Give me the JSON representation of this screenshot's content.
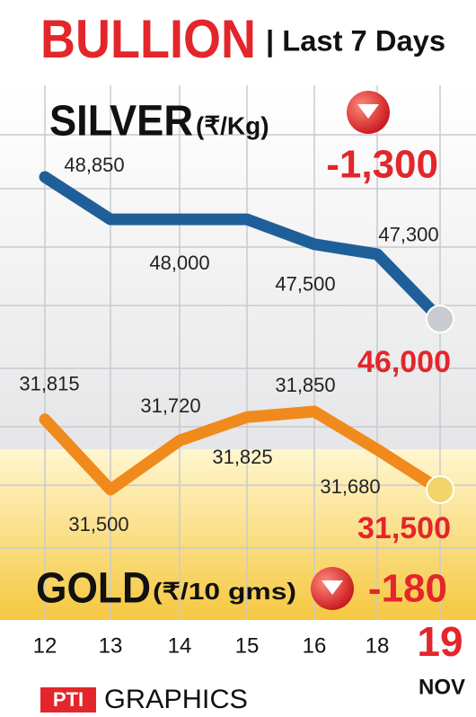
{
  "chart_data": {
    "type": "line",
    "title": "BULLION",
    "subtitle": "| Last 7 Days",
    "categories": [
      "12",
      "13",
      "14",
      "15",
      "16",
      "18",
      "19"
    ],
    "month": "NOV",
    "series": [
      {
        "name": "SILVER",
        "unit": "(₹/Kg)",
        "color": "#1f5f99",
        "values": [
          48850,
          48000,
          48000,
          48000,
          47500,
          47300,
          46000
        ],
        "value_labels": [
          "48,850",
          null,
          "48,000",
          null,
          "47,500",
          "47,300",
          "46,000"
        ],
        "change": {
          "value": -1300,
          "label": "-1,300"
        }
      },
      {
        "name": "GOLD",
        "unit": "(₹/10 gms)",
        "color": "#f08a1c",
        "values": [
          31815,
          31500,
          31720,
          31825,
          31850,
          31680,
          31500
        ],
        "value_labels": [
          "31,815",
          "31,500",
          "31,720",
          "31,825",
          "31,850",
          "31,680",
          "31,500"
        ],
        "change": -180
      }
    ],
    "credit": {
      "brand": "PTI",
      "text": "GRAPHICS"
    }
  }
}
